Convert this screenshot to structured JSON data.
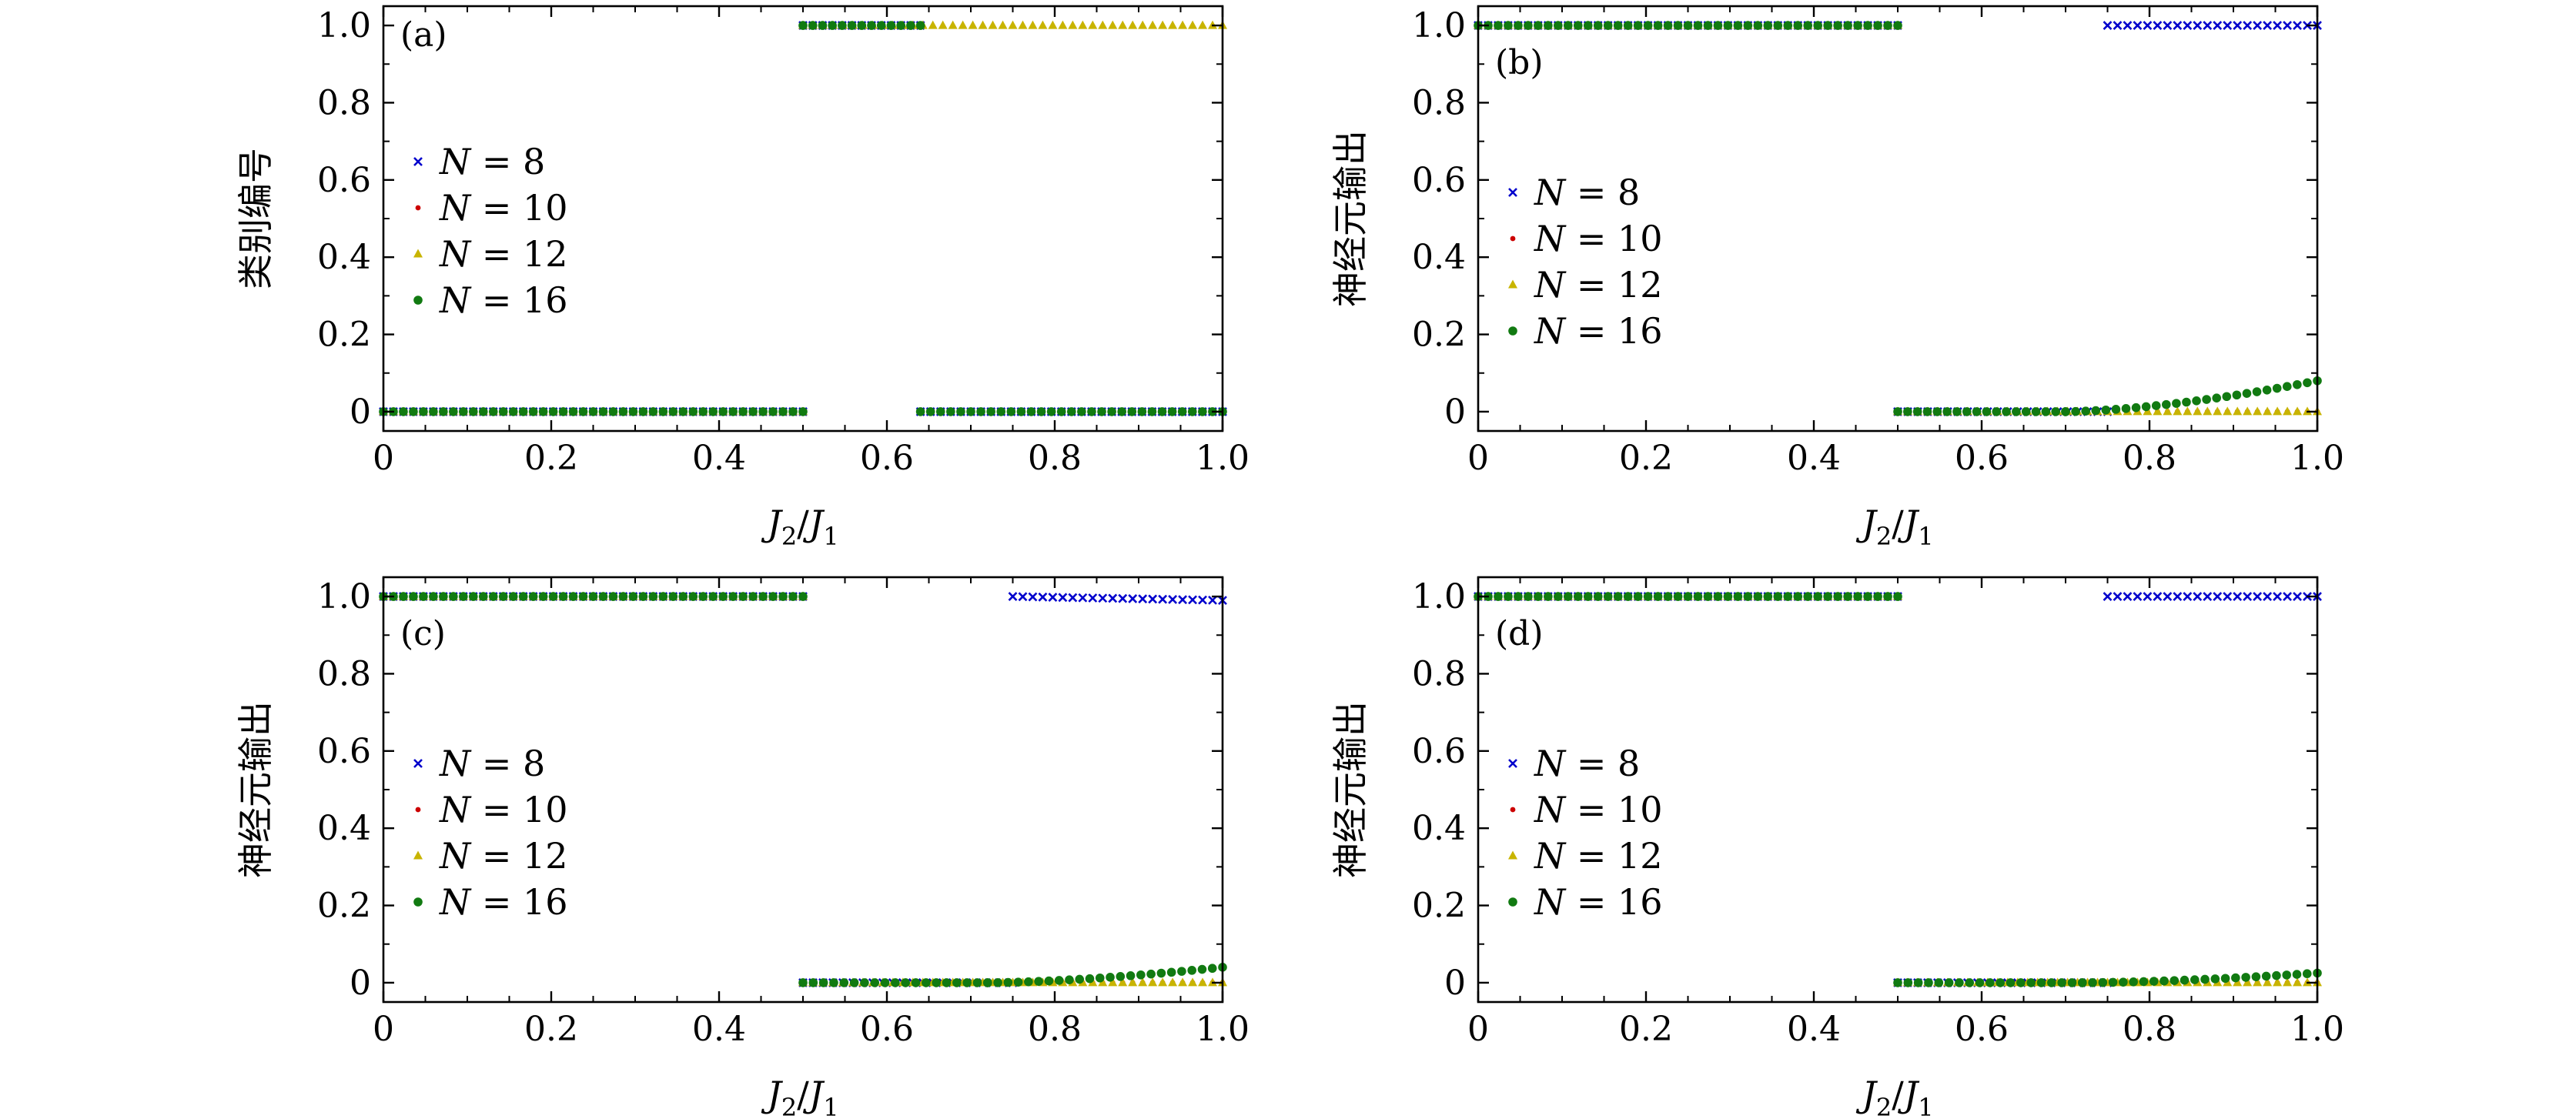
{
  "colors": {
    "N8": "#0000cc",
    "N10": "#cc0000",
    "N12": "#c8b400",
    "N16": "#117a11"
  },
  "chart_data": [
    {
      "type": "scatter",
      "panel": "(a)",
      "xlabel": "J2/J1",
      "ylabel": "类别编号",
      "xlim": [
        0,
        1.0
      ],
      "ylim": [
        -0.05,
        1.05
      ],
      "xticks": [
        "0",
        "0.2",
        "0.4",
        "0.6",
        "0.8",
        "1.0"
      ],
      "yticks": [
        "0",
        "0.2",
        "0.4",
        "0.6",
        "0.8",
        "1.0"
      ],
      "legend_position": "center-left",
      "series": [
        {
          "name": "N = 8",
          "marker": "x",
          "segments": [
            {
              "x0": 0.0,
              "x1": 0.5,
              "y0": 0,
              "y1": 0
            },
            {
              "x0": 0.5,
              "x1": 0.64,
              "y0": 1,
              "y1": 1
            },
            {
              "x0": 0.64,
              "x1": 1.0,
              "y0": 0,
              "y1": 0
            }
          ]
        },
        {
          "name": "N = 10",
          "marker": "dot",
          "segments": [
            {
              "x0": 0.0,
              "x1": 0.5,
              "y0": 0,
              "y1": 0
            },
            {
              "x0": 0.5,
              "x1": 0.64,
              "y0": 1,
              "y1": 1
            },
            {
              "x0": 0.64,
              "x1": 1.0,
              "y0": 0,
              "y1": 0
            }
          ]
        },
        {
          "name": "N = 12",
          "marker": "triangle",
          "segments": [
            {
              "x0": 0.0,
              "x1": 0.5,
              "y0": 0,
              "y1": 0
            },
            {
              "x0": 0.5,
              "x1": 1.0,
              "y0": 1,
              "y1": 1
            }
          ]
        },
        {
          "name": "N = 16",
          "marker": "circle",
          "segments": [
            {
              "x0": 0.0,
              "x1": 0.5,
              "y0": 0,
              "y1": 0
            },
            {
              "x0": 0.5,
              "x1": 0.64,
              "y0": 1,
              "y1": 1
            },
            {
              "x0": 0.64,
              "x1": 1.0,
              "y0": 0,
              "y1": 0
            }
          ]
        }
      ]
    },
    {
      "type": "scatter",
      "panel": "(b)",
      "xlabel": "J2/J1",
      "ylabel": "神经元输出",
      "xlim": [
        0,
        1.0
      ],
      "ylim": [
        -0.05,
        1.05
      ],
      "xticks": [
        "0",
        "0.2",
        "0.4",
        "0.6",
        "0.8",
        "1.0"
      ],
      "yticks": [
        "0",
        "0.2",
        "0.4",
        "0.6",
        "0.8",
        "1.0"
      ],
      "legend_position": "center-left",
      "series": [
        {
          "name": "N = 8",
          "marker": "x",
          "segments": [
            {
              "x0": 0.0,
              "x1": 0.5,
              "y0": 1,
              "y1": 1
            },
            {
              "x0": 0.5,
              "x1": 0.75,
              "y0": 0,
              "y1": 0
            },
            {
              "x0": 0.75,
              "x1": 1.0,
              "y0": 1,
              "y1": 1
            }
          ]
        },
        {
          "name": "N = 10",
          "marker": "dot",
          "segments": [
            {
              "x0": 0.0,
              "x1": 0.5,
              "y0": 1,
              "y1": 1
            },
            {
              "x0": 0.5,
              "x1": 1.0,
              "y0": 0,
              "y1": 0
            }
          ]
        },
        {
          "name": "N = 12",
          "marker": "triangle",
          "segments": [
            {
              "x0": 0.0,
              "x1": 0.5,
              "y0": 1,
              "y1": 1
            },
            {
              "x0": 0.5,
              "x1": 1.0,
              "y0": 0,
              "y1": 0
            }
          ]
        },
        {
          "name": "N = 16",
          "marker": "circle",
          "segments": [
            {
              "x0": 0.0,
              "x1": 0.5,
              "y0": 1,
              "y1": 1
            },
            {
              "x0": 0.5,
              "x1": 0.7,
              "y0": 0,
              "y1": 0
            },
            {
              "x0": 0.7,
              "x1": 1.0,
              "y0": 0,
              "y1": 0.08
            }
          ]
        }
      ]
    },
    {
      "type": "scatter",
      "panel": "(c)",
      "xlabel": "J2/J1",
      "ylabel": "神经元输出",
      "xlim": [
        0,
        1.0
      ],
      "ylim": [
        -0.05,
        1.05
      ],
      "xticks": [
        "0",
        "0.2",
        "0.4",
        "0.6",
        "0.8",
        "1.0"
      ],
      "yticks": [
        "0",
        "0.2",
        "0.4",
        "0.6",
        "0.8",
        "1.0"
      ],
      "legend_position": "center-left",
      "series": [
        {
          "name": "N = 8",
          "marker": "x",
          "segments": [
            {
              "x0": 0.0,
              "x1": 0.5,
              "y0": 1,
              "y1": 1
            },
            {
              "x0": 0.5,
              "x1": 0.75,
              "y0": 0,
              "y1": 0
            },
            {
              "x0": 0.75,
              "x1": 1.0,
              "y0": 1,
              "y1": 0.99
            }
          ]
        },
        {
          "name": "N = 10",
          "marker": "dot",
          "segments": [
            {
              "x0": 0.0,
              "x1": 0.5,
              "y0": 1,
              "y1": 1
            },
            {
              "x0": 0.5,
              "x1": 1.0,
              "y0": 0,
              "y1": 0
            }
          ]
        },
        {
          "name": "N = 12",
          "marker": "triangle",
          "segments": [
            {
              "x0": 0.0,
              "x1": 0.5,
              "y0": 1,
              "y1": 1
            },
            {
              "x0": 0.5,
              "x1": 1.0,
              "y0": 0,
              "y1": 0
            }
          ]
        },
        {
          "name": "N = 16",
          "marker": "circle",
          "segments": [
            {
              "x0": 0.0,
              "x1": 0.5,
              "y0": 1,
              "y1": 1
            },
            {
              "x0": 0.5,
              "x1": 0.72,
              "y0": 0,
              "y1": 0
            },
            {
              "x0": 0.72,
              "x1": 1.0,
              "y0": 0,
              "y1": 0.04
            }
          ]
        }
      ]
    },
    {
      "type": "scatter",
      "panel": "(d)",
      "xlabel": "J2/J1",
      "ylabel": "神经元输出",
      "xlim": [
        0,
        1.0
      ],
      "ylim": [
        -0.05,
        1.05
      ],
      "xticks": [
        "0",
        "0.2",
        "0.4",
        "0.6",
        "0.8",
        "1.0"
      ],
      "yticks": [
        "0",
        "0.2",
        "0.4",
        "0.6",
        "0.8",
        "1.0"
      ],
      "legend_position": "center-left",
      "series": [
        {
          "name": "N = 8",
          "marker": "x",
          "segments": [
            {
              "x0": 0.0,
              "x1": 0.5,
              "y0": 1,
              "y1": 1
            },
            {
              "x0": 0.5,
              "x1": 0.75,
              "y0": 0,
              "y1": 0
            },
            {
              "x0": 0.75,
              "x1": 1.0,
              "y0": 1,
              "y1": 1
            }
          ]
        },
        {
          "name": "N = 10",
          "marker": "dot",
          "segments": [
            {
              "x0": 0.0,
              "x1": 0.5,
              "y0": 1,
              "y1": 1
            },
            {
              "x0": 0.5,
              "x1": 1.0,
              "y0": 0,
              "y1": 0
            }
          ]
        },
        {
          "name": "N = 12",
          "marker": "triangle",
          "segments": [
            {
              "x0": 0.0,
              "x1": 0.5,
              "y0": 1,
              "y1": 1
            },
            {
              "x0": 0.5,
              "x1": 1.0,
              "y0": 0,
              "y1": 0
            }
          ]
        },
        {
          "name": "N = 16",
          "marker": "circle",
          "segments": [
            {
              "x0": 0.0,
              "x1": 0.5,
              "y0": 1,
              "y1": 1
            },
            {
              "x0": 0.5,
              "x1": 0.72,
              "y0": 0,
              "y1": 0
            },
            {
              "x0": 0.72,
              "x1": 1.0,
              "y0": 0,
              "y1": 0.025
            }
          ]
        }
      ]
    }
  ]
}
